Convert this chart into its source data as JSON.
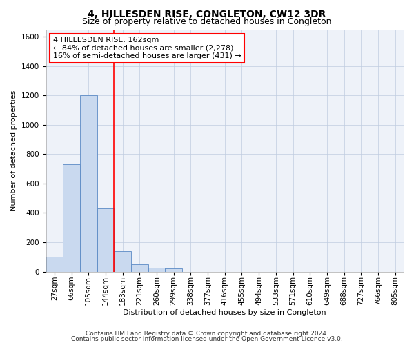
{
  "title": "4, HILLESDEN RISE, CONGLETON, CW12 3DR",
  "subtitle": "Size of property relative to detached houses in Congleton",
  "xlabel_bottom": "Distribution of detached houses by size in Congleton",
  "ylabel": "Number of detached properties",
  "footer1": "Contains HM Land Registry data © Crown copyright and database right 2024.",
  "footer2": "Contains public sector information licensed under the Open Government Licence v3.0.",
  "categories": [
    "27sqm",
    "66sqm",
    "105sqm",
    "144sqm",
    "183sqm",
    "221sqm",
    "260sqm",
    "299sqm",
    "338sqm",
    "377sqm",
    "416sqm",
    "455sqm",
    "494sqm",
    "533sqm",
    "571sqm",
    "610sqm",
    "649sqm",
    "688sqm",
    "727sqm",
    "766sqm",
    "805sqm"
  ],
  "values": [
    100,
    730,
    1200,
    430,
    140,
    50,
    25,
    20,
    0,
    0,
    0,
    0,
    0,
    0,
    0,
    0,
    0,
    0,
    0,
    0,
    0
  ],
  "bar_color": "#c9d9ef",
  "bar_edge_color": "#5b8ac5",
  "vline_x": 3.5,
  "vline_color": "red",
  "annotation_line1": "4 HILLESDEN RISE: 162sqm",
  "annotation_line2": "← 84% of detached houses are smaller (2,278)",
  "annotation_line3": "16% of semi-detached houses are larger (431) →",
  "annotation_box_color": "white",
  "annotation_box_edge_color": "red",
  "ylim": [
    0,
    1650
  ],
  "yticks": [
    0,
    200,
    400,
    600,
    800,
    1000,
    1200,
    1400,
    1600
  ],
  "bg_color": "#eef2f9",
  "grid_color": "#c0cce0",
  "title_fontsize": 10,
  "subtitle_fontsize": 9,
  "axis_label_fontsize": 8,
  "tick_fontsize": 7.5,
  "footer_fontsize": 6.5,
  "annotation_fontsize": 8
}
